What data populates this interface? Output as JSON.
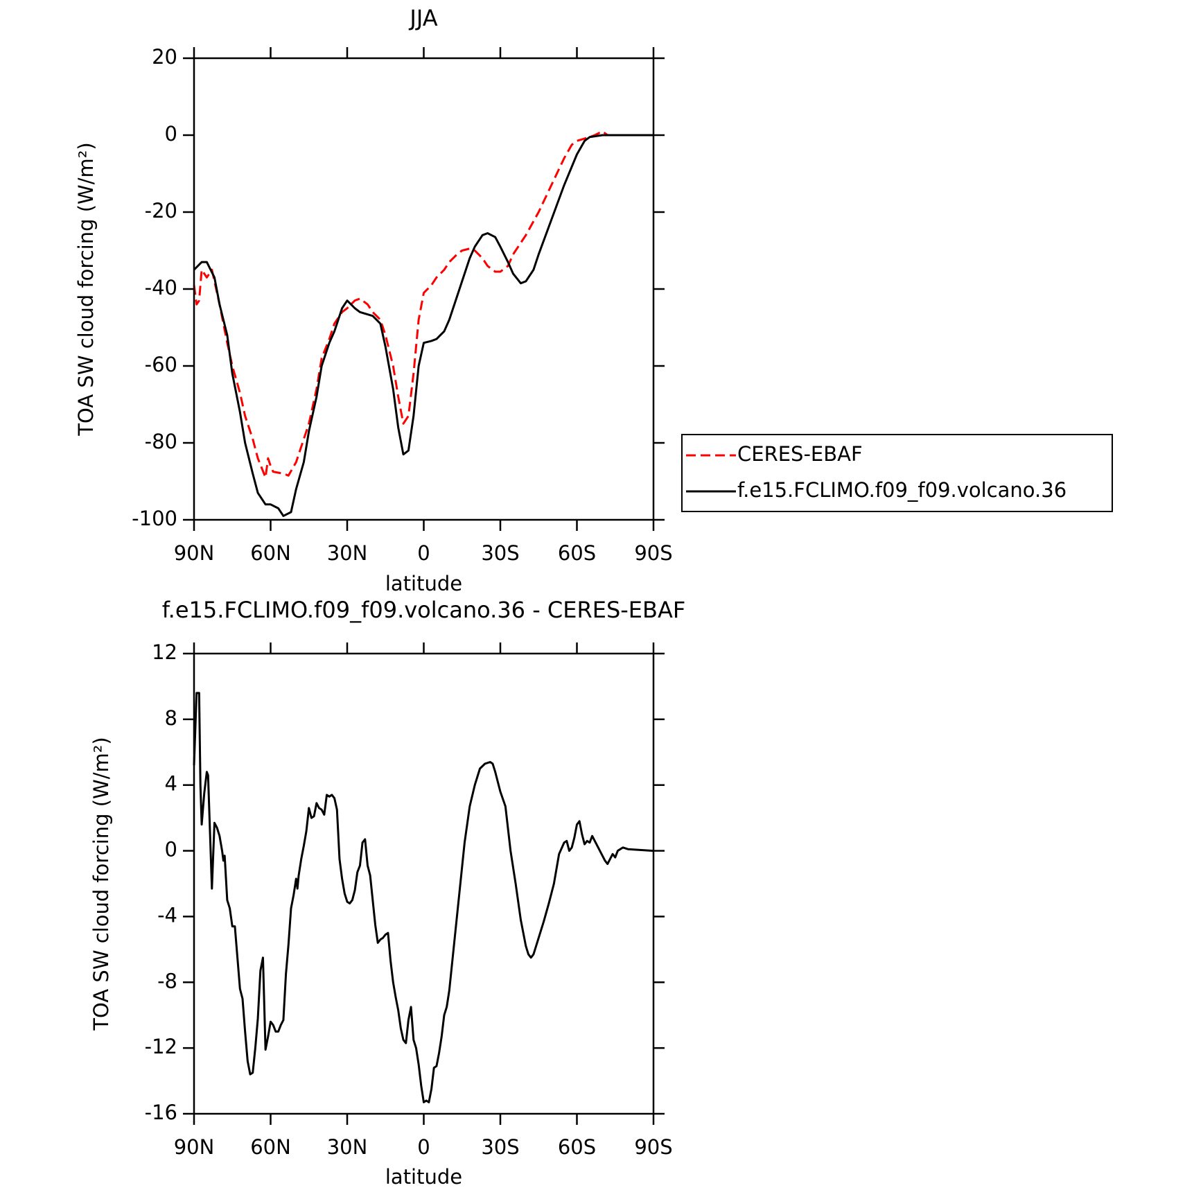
{
  "chart_data": [
    {
      "type": "line",
      "title": "JJA",
      "xlabel": "latitude",
      "ylabel": "TOA SW cloud forcing (W/m²)",
      "xlim": [
        90,
        -90
      ],
      "xticks": [
        {
          "value": 90,
          "label": "90N"
        },
        {
          "value": 60,
          "label": "60N"
        },
        {
          "value": 30,
          "label": "30N"
        },
        0,
        {
          "value": -30,
          "label": "30S"
        },
        {
          "value": -60,
          "label": "60S"
        },
        {
          "value": -90,
          "label": "90S"
        }
      ],
      "ylim": [
        -100,
        20
      ],
      "yticks": [
        -100,
        -80,
        -60,
        -40,
        -20,
        0,
        20
      ],
      "legend": "right",
      "series": [
        {
          "name": "CERES-EBAF",
          "color": "#ff0000",
          "dashed": true,
          "x": [
            90,
            89,
            88,
            87,
            85,
            83,
            80,
            77,
            75,
            72,
            70,
            67,
            65,
            62,
            61,
            60,
            59,
            55,
            53,
            50,
            47,
            45,
            42,
            40,
            37,
            35,
            32,
            30,
            27,
            25,
            22,
            20,
            17,
            15,
            12,
            10,
            8,
            6,
            4,
            2,
            0,
            -3,
            -5,
            -8,
            -10,
            -13,
            -15,
            -18,
            -20,
            -23,
            -25,
            -28,
            -30,
            -33,
            -35,
            -40,
            -45,
            -50,
            -55,
            -58,
            -60,
            -65,
            -67,
            -70,
            -72,
            -75,
            -90
          ],
          "values": [
            -39,
            -44,
            -43,
            -35,
            -37,
            -35,
            -44,
            -54,
            -60,
            -67,
            -73,
            -79,
            -84,
            -89,
            -84,
            -86,
            -87.5,
            -88,
            -88.5,
            -85,
            -79,
            -75,
            -66,
            -58,
            -53,
            -49,
            -46,
            -45,
            -43,
            -42.5,
            -44,
            -46,
            -48,
            -52,
            -60,
            -68,
            -75,
            -73,
            -62,
            -48,
            -41,
            -39,
            -37,
            -35,
            -33,
            -31,
            -30,
            -29.5,
            -30,
            -32,
            -34,
            -35.5,
            -35.5,
            -34,
            -31,
            -26,
            -20,
            -13,
            -6,
            -2.5,
            -1.5,
            -0.5,
            0,
            1,
            0,
            0,
            0
          ]
        },
        {
          "name": "f.e15.FCLIMO.f09_f09.volcano.36",
          "color": "#000000",
          "dashed": false,
          "x": [
            90,
            87,
            85,
            82,
            80,
            77,
            75,
            72,
            70,
            67,
            65,
            62,
            60,
            57,
            55,
            52,
            50,
            47,
            45,
            42,
            40,
            37,
            35,
            32,
            30,
            27,
            25,
            20,
            17,
            15,
            12,
            10,
            8,
            6,
            4,
            2,
            0,
            -3,
            -5,
            -8,
            -10,
            -13,
            -15,
            -18,
            -20,
            -23,
            -25,
            -28,
            -30,
            -33,
            -35,
            -38,
            -40,
            -43,
            -45,
            -50,
            -55,
            -60,
            -63,
            -65,
            -70,
            -75,
            -90
          ],
          "values": [
            -35,
            -33,
            -33,
            -37,
            -44,
            -52,
            -62,
            -72,
            -80,
            -88,
            -93,
            -96,
            -96,
            -97,
            -99,
            -98,
            -92,
            -85,
            -77,
            -68,
            -60,
            -54,
            -51,
            -45,
            -43,
            -45,
            -46,
            -47,
            -49,
            -55,
            -66,
            -76,
            -83,
            -82,
            -73,
            -60,
            -54,
            -53.5,
            -53,
            -51,
            -48,
            -42,
            -38,
            -32,
            -29,
            -26,
            -25.5,
            -26.5,
            -29,
            -33,
            -36,
            -38.5,
            -38,
            -35,
            -31,
            -22,
            -13,
            -5,
            -1.5,
            -0.5,
            0,
            0,
            0
          ]
        }
      ]
    },
    {
      "type": "line",
      "title": "f.e15.FCLIMO.f09_f09.volcano.36 - CERES-EBAF",
      "xlabel": "latitude",
      "ylabel": "TOA SW cloud forcing (W/m²)",
      "xlim": [
        90,
        -90
      ],
      "xticks": [
        {
          "value": 90,
          "label": "90N"
        },
        {
          "value": 60,
          "label": "60N"
        },
        {
          "value": 30,
          "label": "30N"
        },
        0,
        {
          "value": -30,
          "label": "30S"
        },
        {
          "value": -60,
          "label": "60S"
        },
        {
          "value": -90,
          "label": "90S"
        }
      ],
      "ylim": [
        -16,
        12
      ],
      "yticks": [
        -16,
        -12,
        -8,
        -4,
        0,
        4,
        8,
        12
      ],
      "series": [
        {
          "color": "#000000",
          "dashed": false,
          "x": [
            90,
            89,
            88,
            87.5,
            87,
            86,
            85,
            84.5,
            83.5,
            83,
            82,
            81,
            80,
            79,
            78.5,
            78,
            77,
            76,
            75,
            74,
            73,
            72,
            71,
            70,
            69,
            68,
            67,
            66,
            65,
            64,
            63,
            62,
            61,
            60,
            59,
            58,
            57,
            56,
            55,
            54,
            53,
            52,
            51,
            50,
            49.5,
            49,
            48,
            47,
            46,
            45,
            44,
            43,
            42,
            41,
            40,
            39,
            38,
            37,
            36,
            35,
            34,
            33,
            32,
            31,
            30,
            29,
            28,
            27,
            26,
            25,
            24,
            23,
            22,
            21,
            20,
            19,
            18,
            17,
            16,
            15,
            14,
            13,
            12,
            11,
            10,
            9,
            8,
            7,
            6,
            5,
            4,
            3,
            2,
            1,
            0,
            -1,
            -2,
            -3,
            -4,
            -5,
            -6,
            -7,
            -8,
            -9,
            -10,
            -12,
            -14,
            -16,
            -18,
            -20,
            -22,
            -24,
            -26,
            -27,
            -28,
            -30,
            -32,
            -34,
            -36,
            -38,
            -40,
            -41,
            -42,
            -43,
            -45,
            -47,
            -49,
            -51,
            -53,
            -55,
            -56,
            -57,
            -58,
            -59,
            -60,
            -61,
            -62,
            -63,
            -64,
            -65,
            -66,
            -67,
            -69,
            -71,
            -72,
            -73,
            -74,
            -75,
            -76,
            -78,
            -80,
            -90
          ],
          "values": [
            5.2,
            9.6,
            9.6,
            4,
            1.6,
            3.5,
            4.8,
            4.6,
            0,
            -2.3,
            1.7,
            1.4,
            0.9,
            0,
            -0.6,
            -0.3,
            -3,
            -3.5,
            -4.6,
            -4.6,
            -6.5,
            -8.4,
            -9,
            -11,
            -12.8,
            -13.6,
            -13.5,
            -12,
            -10.2,
            -7.3,
            -6.5,
            -12.1,
            -11.3,
            -10.4,
            -10.6,
            -11,
            -11,
            -10.6,
            -10.3,
            -7.5,
            -5.7,
            -3.5,
            -2.7,
            -1.7,
            -2.3,
            -1.5,
            -0.5,
            0.3,
            1.2,
            2.6,
            2,
            2.1,
            2.9,
            2.6,
            2.5,
            2.2,
            3.4,
            3.3,
            3.4,
            3.2,
            2.5,
            -0.5,
            -1.7,
            -2.6,
            -3.1,
            -3.2,
            -3,
            -2.4,
            -1.3,
            -0.9,
            0.5,
            0.7,
            -0.9,
            -1.5,
            -3,
            -4.5,
            -5.6,
            -5.4,
            -5.3,
            -5.1,
            -5,
            -6.7,
            -8,
            -8.9,
            -9.7,
            -10.8,
            -11.5,
            -11.7,
            -10.3,
            -9.5,
            -11.5,
            -12,
            -13,
            -14.3,
            -15.3,
            -15.2,
            -15.3,
            -14.5,
            -13.2,
            -13.1,
            -12.3,
            -11.3,
            -10,
            -9.5,
            -8.5,
            -5.5,
            -2.5,
            0.5,
            2.7,
            4,
            5,
            5.3,
            5.4,
            5.3,
            4.8,
            3.6,
            2.7,
            0,
            -2,
            -4.2,
            -5.8,
            -6.3,
            -6.5,
            -6.3,
            -5.3,
            -4.3,
            -3.2,
            -2,
            -0.2,
            0.5,
            0.6,
            0,
            0.2,
            0.8,
            1.6,
            1.8,
            1,
            0.4,
            0.6,
            0.5,
            0.9,
            0.6,
            0,
            -0.6,
            -0.8,
            -0.5,
            -0.2,
            -0.4,
            0,
            0.2,
            0.1,
            0
          ]
        }
      ]
    }
  ]
}
